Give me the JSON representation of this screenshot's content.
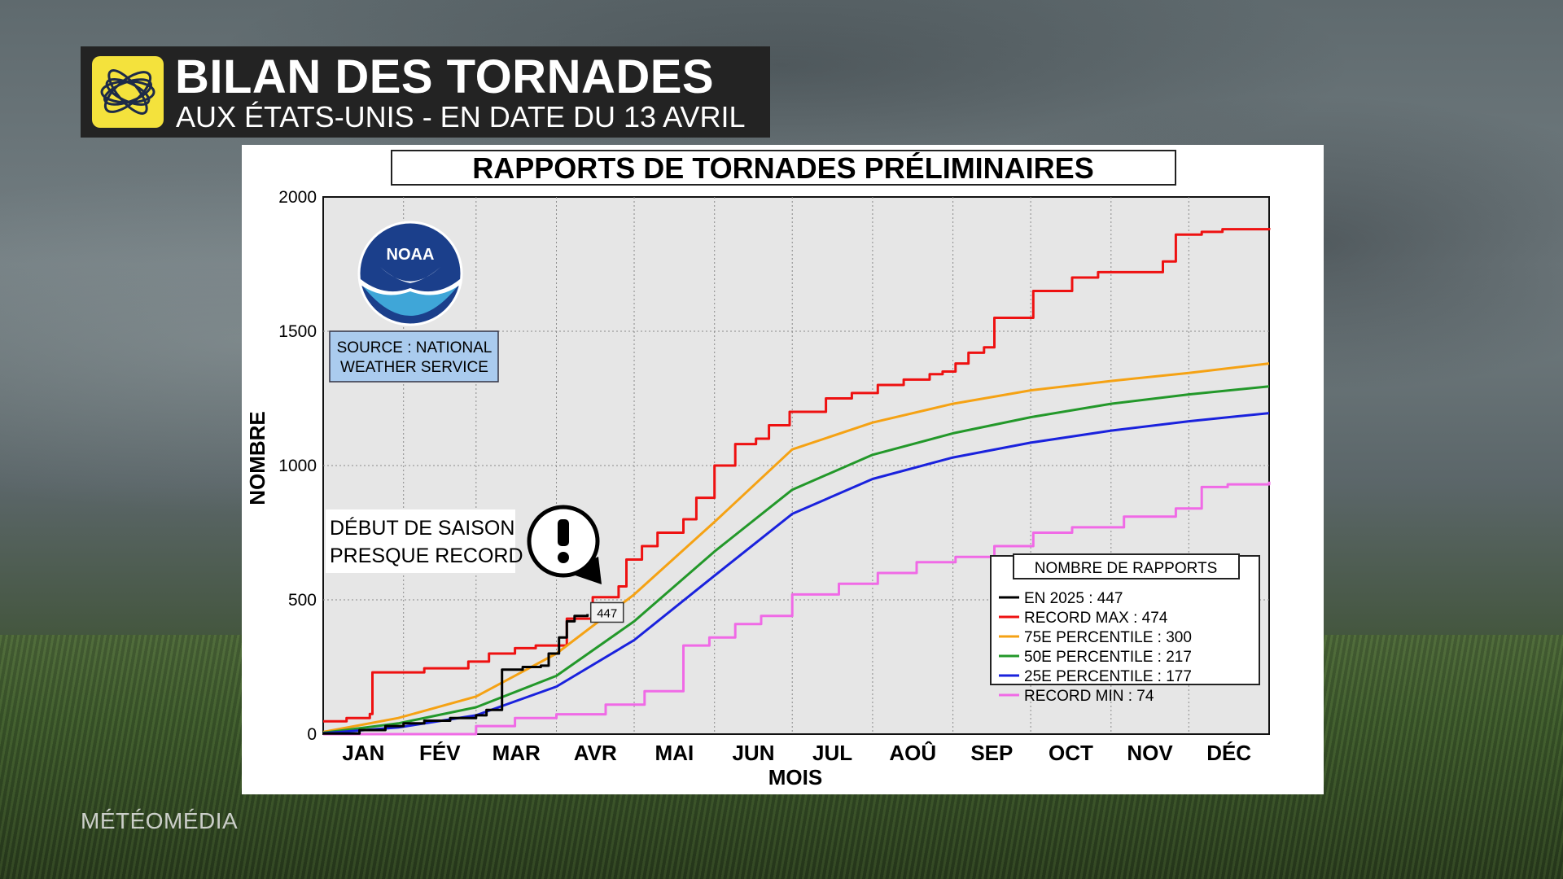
{
  "header": {
    "title": "BILAN DES TORNADES",
    "subtitle": "AUX ÉTATS-UNIS - EN DATE DU 13 AVRIL",
    "icon": "spiral-logo-icon"
  },
  "brand": {
    "watermark": "MÉTÉOMÉDIA"
  },
  "logo": {
    "name": "NOAA",
    "text": "NOAA"
  },
  "source_box": {
    "line1": "SOURCE : NATIONAL",
    "line2": "WEATHER SERVICE"
  },
  "annotation": {
    "line1": "DÉBUT DE SAISON",
    "line2": "PRESQUE RECORD",
    "icon": "exclamation-icon"
  },
  "chart_data": {
    "type": "line",
    "title": "RAPPORTS DE TORNADES PRÉLIMINAIRES",
    "xlabel": "MOIS",
    "ylabel": "NOMBRE",
    "ylim": [
      0,
      2000
    ],
    "xlim": [
      1,
      366
    ],
    "yticks": [
      0,
      500,
      1000,
      1500,
      2000
    ],
    "months": [
      "JAN",
      "FÉV",
      "MAR",
      "AVR",
      "MAI",
      "JUN",
      "JUL",
      "AOÛ",
      "SEP",
      "OCT",
      "NOV",
      "DÉC"
    ],
    "month_start_days": [
      1,
      32,
      60,
      91,
      121,
      152,
      182,
      213,
      244,
      274,
      305,
      335
    ],
    "grid": true,
    "legend_title": "NOMBRE DE RAPPORTS",
    "legend_position": "bottom-right",
    "current_value_label": "447",
    "series": [
      {
        "name": "RECORD MAX : 474",
        "color": "#ee1111",
        "step": true,
        "x": [
          1,
          10,
          19,
          20,
          40,
          57,
          65,
          75,
          83,
          95,
          105,
          115,
          118,
          124,
          130,
          140,
          145,
          152,
          160,
          168,
          173,
          181,
          195,
          205,
          215,
          225,
          235,
          240,
          245,
          250,
          256,
          260,
          275,
          290,
          300,
          325,
          330,
          340,
          348,
          366
        ],
        "y": [
          48,
          60,
          75,
          230,
          245,
          270,
          300,
          320,
          330,
          430,
          510,
          550,
          650,
          700,
          750,
          800,
          880,
          1000,
          1080,
          1100,
          1150,
          1200,
          1250,
          1270,
          1300,
          1320,
          1340,
          1350,
          1380,
          1420,
          1440,
          1550,
          1650,
          1700,
          1720,
          1760,
          1860,
          1870,
          1880,
          1885
        ]
      },
      {
        "name": "75E PERCENTILE : 300",
        "color": "#f5a214",
        "step": false,
        "x": [
          1,
          30,
          60,
          91,
          121,
          152,
          182,
          213,
          244,
          274,
          305,
          335,
          366
        ],
        "y": [
          8,
          60,
          140,
          300,
          520,
          790,
          1060,
          1160,
          1230,
          1280,
          1315,
          1345,
          1380
        ]
      },
      {
        "name": "50E PERCENTILE : 217",
        "color": "#23982a",
        "step": false,
        "x": [
          1,
          30,
          60,
          91,
          121,
          152,
          182,
          213,
          244,
          274,
          305,
          335,
          366
        ],
        "y": [
          5,
          40,
          100,
          217,
          420,
          680,
          910,
          1040,
          1120,
          1180,
          1230,
          1265,
          1295
        ]
      },
      {
        "name": "25E PERCENTILE : 177",
        "color": "#1a22dd",
        "step": false,
        "x": [
          1,
          30,
          60,
          91,
          121,
          152,
          182,
          213,
          244,
          274,
          305,
          335,
          366
        ],
        "y": [
          3,
          25,
          70,
          177,
          350,
          590,
          820,
          950,
          1030,
          1085,
          1130,
          1165,
          1195
        ]
      },
      {
        "name": "RECORD MIN : 74",
        "color": "#f06ae6",
        "step": true,
        "x": [
          1,
          60,
          75,
          91,
          110,
          125,
          140,
          150,
          160,
          170,
          182,
          200,
          215,
          230,
          245,
          260,
          275,
          290,
          310,
          330,
          340,
          350,
          366
        ],
        "y": [
          0,
          30,
          60,
          74,
          110,
          160,
          330,
          360,
          410,
          440,
          520,
          560,
          600,
          640,
          660,
          700,
          750,
          770,
          810,
          840,
          920,
          930,
          940
        ]
      },
      {
        "name": "EN 2025 : 447",
        "color": "#000000",
        "step": true,
        "x": [
          1,
          15,
          25,
          32,
          40,
          50,
          60,
          64,
          70,
          78,
          85,
          88,
          92,
          95,
          98,
          103
        ],
        "y": [
          2,
          15,
          30,
          40,
          50,
          60,
          70,
          90,
          240,
          250,
          255,
          300,
          360,
          420,
          440,
          447
        ]
      }
    ]
  }
}
